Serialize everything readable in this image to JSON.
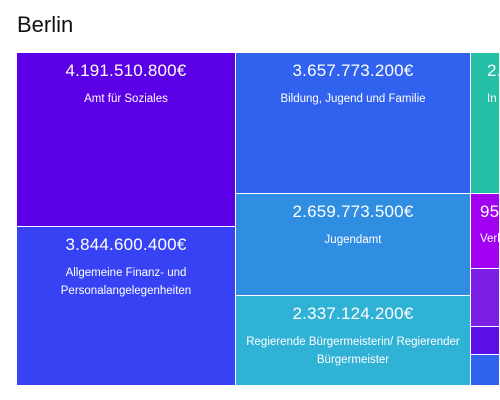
{
  "header": {
    "title": "Berlin"
  },
  "treemap": {
    "cells": [
      {
        "value": "4.191.510.800€",
        "label": "Amt für Soziales",
        "color": "#5b00e6"
      },
      {
        "value": "3.657.773.200€",
        "label": "Bildung, Jugend und Familie",
        "color": "#3161ef"
      },
      {
        "value": "2.",
        "label": "In",
        "color": "#24bfa6"
      },
      {
        "value": "2.659.773.500€",
        "label": "Jugendamt",
        "color": "#2f8ee2"
      },
      {
        "value": "95",
        "label": "Verk",
        "color": "#a100f2"
      },
      {
        "value": "",
        "label": "",
        "color": "#7a1fe3"
      },
      {
        "value": "3.844.600.400€",
        "label": "Allgemeine Finanz- und Personalangelegenheiten",
        "color": "#3642f3"
      },
      {
        "value": "2.337.124.200€",
        "label": "Regierende Bürgermeisterin/ Regierender Bürgermeister",
        "color": "#30b2d6"
      },
      {
        "value": "",
        "label": "",
        "color": "#5e0ee6"
      },
      {
        "value": "",
        "label": "",
        "color": "#2e63ee"
      }
    ]
  }
}
